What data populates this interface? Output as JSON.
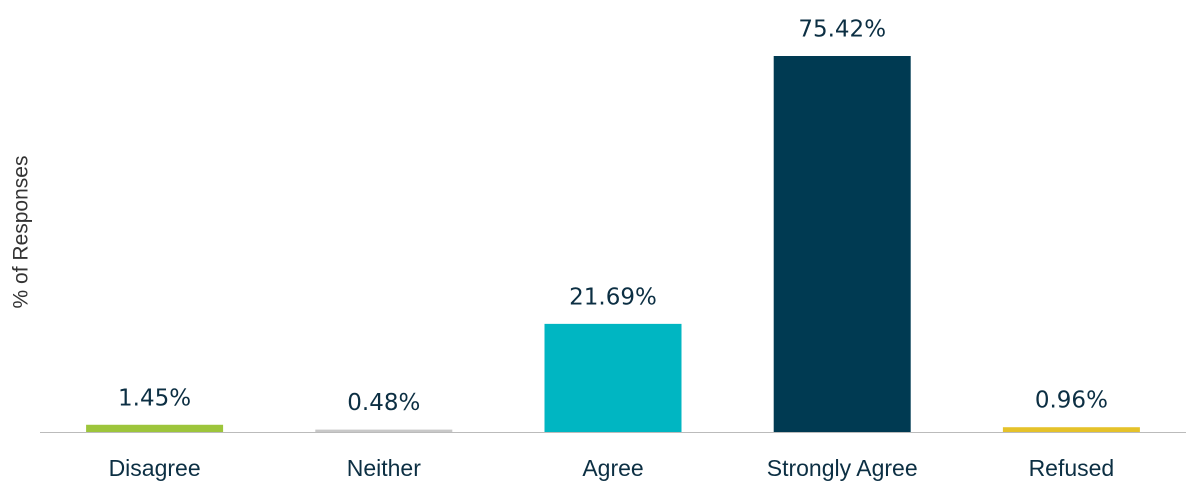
{
  "chart_data": {
    "type": "bar",
    "y_label": "% of Responses",
    "categories": [
      "Disagree",
      "Neither",
      "Agree",
      "Strongly Agree",
      "Refused"
    ],
    "values": [
      1.45,
      0.48,
      21.69,
      75.42,
      0.96
    ],
    "value_labels": [
      "1.45%",
      "0.48%",
      "21.69%",
      "75.42%",
      "0.96%"
    ],
    "colors": [
      "#9dc53b",
      "#c8c8c8",
      "#00b6c2",
      "#003a52",
      "#e5c22a"
    ]
  }
}
